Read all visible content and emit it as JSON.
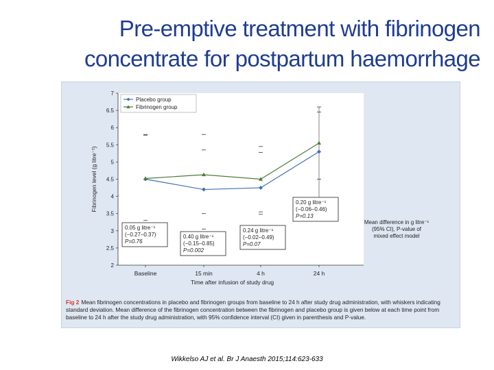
{
  "slide": {
    "title_line1": "Pre-emptive treatment with fibrinogen",
    "title_line2": "concentrate for postpartum haemorrhage",
    "citation": "Wikkelso AJ et al. Br J Anaesth 2015;114:623-633"
  },
  "figure": {
    "caption_label": "Fig 2",
    "caption_text": "Mean fibrinogen concentrations in placebo and fibrinogen groups from baseline to 24 h after study drug administration, with whiskers indicating standard deviation. Mean difference of the fibrinogen concentration between the fibrinogen and placebo group is given below at each time point from baseline to 24 h after the study drug administration, with 95% confidence interval (CI) given in parenthesis and P-value."
  },
  "chart_data": {
    "type": "line",
    "xlabel": "Time after infusion of study drug",
    "ylabel": "Fibrinogen level (g litre⁻¹)",
    "categories": [
      "Baseline",
      "15 min",
      "4 h",
      "24 h"
    ],
    "ylim": [
      2,
      7
    ],
    "yticks": [
      "2",
      "2.5",
      "3",
      "3.5",
      "4",
      "4.5",
      "5",
      "5.5",
      "6",
      "6.5",
      "7"
    ],
    "legend_position": "top-left",
    "series": [
      {
        "name": "Placebo group",
        "color": "#3f6fb5",
        "marker": "diamond",
        "values": [
          4.5,
          4.2,
          4.25,
          5.3
        ]
      },
      {
        "name": "Fibrinogen group",
        "color": "#4d7a3a",
        "marker": "triangle",
        "values": [
          4.52,
          4.63,
          4.5,
          5.55
        ]
      }
    ],
    "whisker_caps": [
      {
        "x": "Baseline",
        "values": [
          5.8,
          5.78,
          3.3,
          3.2
        ]
      },
      {
        "x": "15 min",
        "values": [
          5.8,
          5.35,
          3.5,
          3.05
        ]
      },
      {
        "x": "4 h",
        "values": [
          5.45,
          5.28,
          3.55,
          3.48
        ]
      },
      {
        "x": "24 h",
        "values": [
          6.6,
          6.45,
          4.5,
          3.95
        ]
      }
    ],
    "annotations": [
      {
        "x": "Baseline",
        "lines": [
          "0.05 g litre⁻¹",
          "(−0.27–0.37)",
          "P=0.76"
        ],
        "boxed": true
      },
      {
        "x": "15 min",
        "lines": [
          "0.40 g litre⁻¹",
          "(−0.15–0.85)",
          "P=0.002"
        ],
        "boxed": true
      },
      {
        "x": "4 h",
        "lines": [
          "0.24 g litre⁻¹",
          "(−0.02–0.49)",
          "P=0.07"
        ],
        "boxed": true
      },
      {
        "x": "24 h",
        "lines": [
          "0.20 g litre⁻¹",
          "(−0.06–0.46)",
          "P=0.13"
        ],
        "boxed": true
      }
    ],
    "key_note": [
      "Mean difference in g litre⁻¹",
      "(95% CI), P-value of",
      "mixed effect model"
    ]
  }
}
